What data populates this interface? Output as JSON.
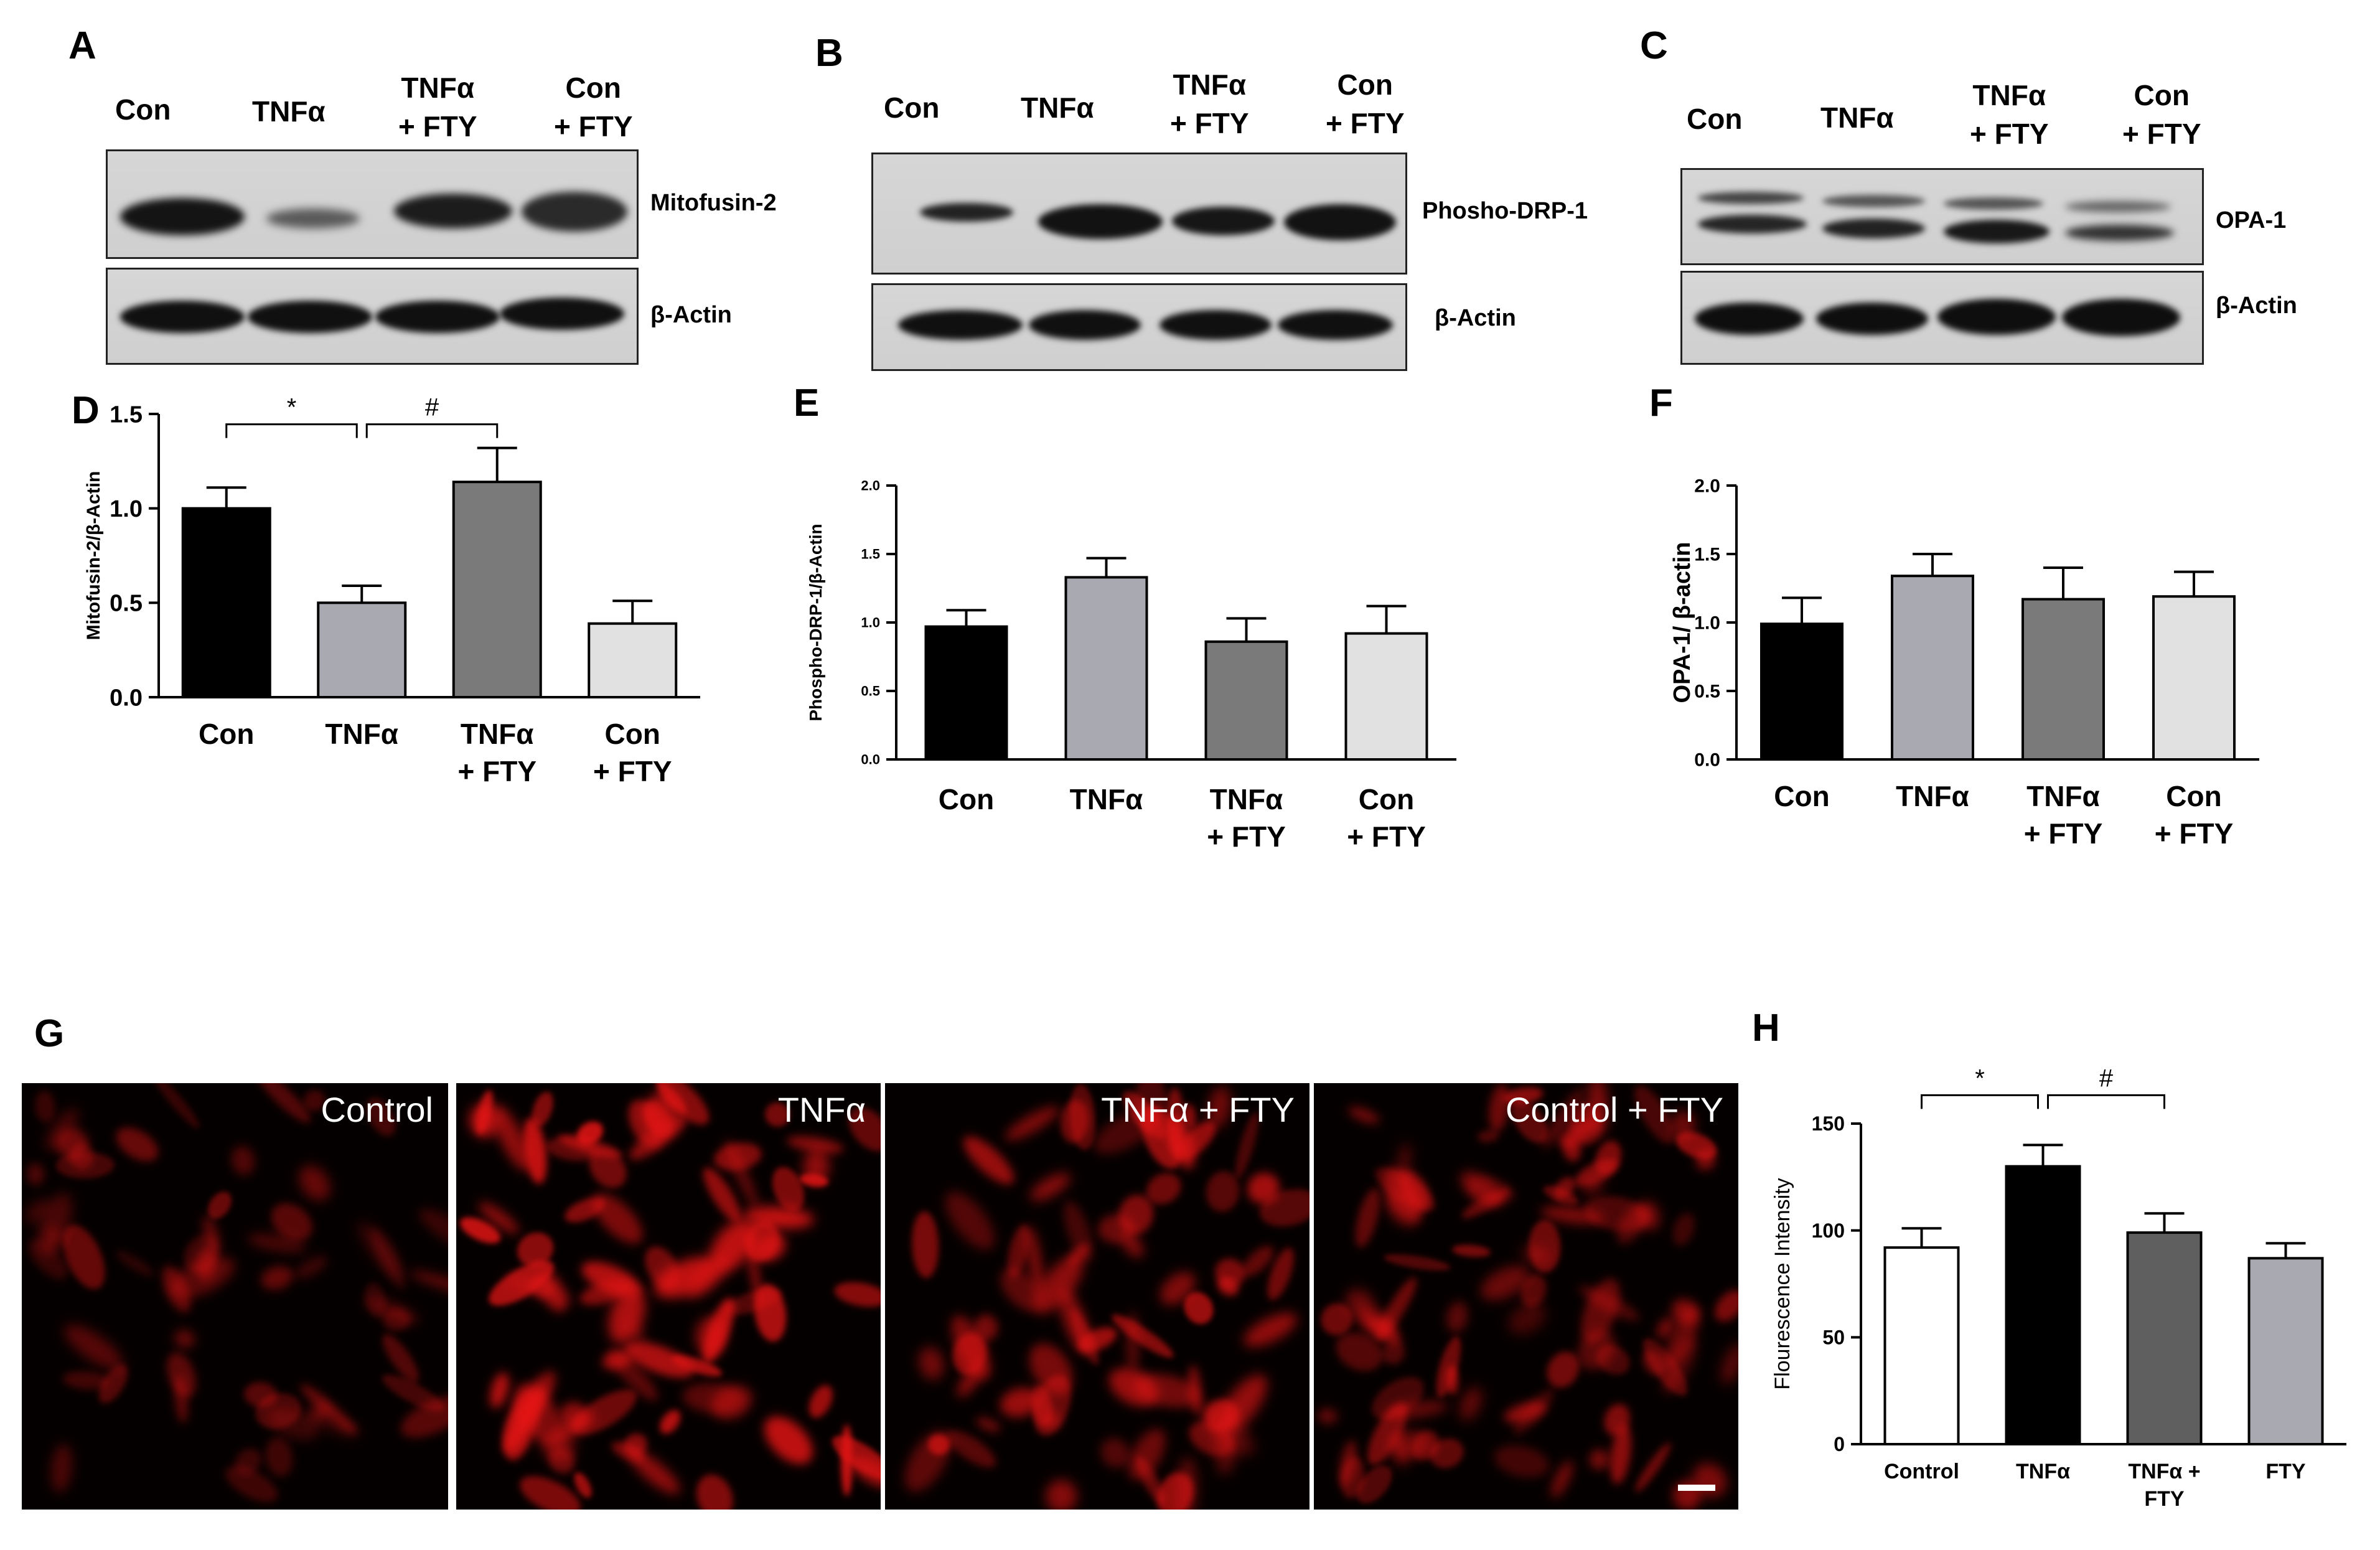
{
  "panels": {
    "A": {
      "letter": "A",
      "lanes": [
        "Con",
        "TNFα",
        "TNFα\n+ FTY",
        "Con\n+ FTY"
      ],
      "blots": [
        "Mitofusin-2",
        "β-Actin"
      ]
    },
    "B": {
      "letter": "B",
      "lanes": [
        "Con",
        "TNFα",
        "TNFα\n+ FTY",
        "Con\n+ FTY"
      ],
      "blots": [
        "Phosho-DRP-1",
        "β-Actin"
      ]
    },
    "C": {
      "letter": "C",
      "lanes": [
        "Con",
        "TNFα",
        "TNFα\n+ FTY",
        "Con\n+ FTY"
      ],
      "blots": [
        "OPA-1",
        "β-Actin"
      ]
    },
    "G": {
      "letter": "G",
      "images": [
        "Control",
        "TNFα",
        "TNFα + FTY",
        "Control + FTY"
      ]
    }
  },
  "colors": {
    "con": "#000000",
    "tnf": "#a9a9b1",
    "tnf_fty": "#7a7a7a",
    "con_fty": "#e1e1e1",
    "fluor": "#ff1a1a"
  },
  "chart_data": [
    {
      "id": "D",
      "letter": "D",
      "type": "bar",
      "categories": [
        "Con",
        "TNFα",
        "TNFα\n+ FTY",
        "Con\n+ FTY"
      ],
      "values": [
        1.0,
        0.5,
        1.14,
        0.39
      ],
      "errors": [
        0.11,
        0.09,
        0.18,
        0.12
      ],
      "ylabel": "Mitofusin-2/β-Actin",
      "ylim": [
        0,
        1.5
      ],
      "yticks": [
        "0.0",
        "0.5",
        "1.0",
        "1.5"
      ],
      "annotations": [
        "*",
        "#"
      ],
      "colors": [
        "#000000",
        "#a9a9b1",
        "#7a7a7a",
        "#e1e1e1"
      ]
    },
    {
      "id": "E",
      "letter": "E",
      "type": "bar",
      "categories": [
        "Con",
        "TNFα",
        "TNFα\n+ FTY",
        "Con\n+ FTY"
      ],
      "values": [
        0.97,
        1.33,
        0.86,
        0.92
      ],
      "errors": [
        0.12,
        0.14,
        0.17,
        0.2
      ],
      "ylabel": "Phospho-DRP-1/β-Actin",
      "ylim": [
        0,
        2.0
      ],
      "yticks": [
        "0.0",
        "0.5",
        "1.0",
        "1.5",
        "2.0"
      ],
      "annotations": [],
      "colors": [
        "#000000",
        "#a9a9b1",
        "#7a7a7a",
        "#e1e1e1"
      ]
    },
    {
      "id": "F",
      "letter": "F",
      "type": "bar",
      "categories": [
        "Con",
        "TNFα",
        "TNFα\n+ FTY",
        "Con\n+ FTY"
      ],
      "values": [
        0.99,
        1.34,
        1.17,
        1.19
      ],
      "errors": [
        0.19,
        0.16,
        0.23,
        0.18
      ],
      "ylabel": "OPA-1/ β-actin",
      "ylim": [
        0,
        2.0
      ],
      "yticks": [
        "0.0",
        "0.5",
        "1.0",
        "1.5",
        "2.0"
      ],
      "annotations": [],
      "colors": [
        "#000000",
        "#a9a9b1",
        "#7a7a7a",
        "#e1e1e1"
      ]
    },
    {
      "id": "H",
      "letter": "H",
      "type": "bar",
      "categories": [
        "Control",
        "TNFα",
        "TNFα +\nFTY",
        "FTY"
      ],
      "values": [
        92,
        130,
        99,
        87
      ],
      "errors": [
        9,
        10,
        9,
        7
      ],
      "ylabel": "Flourescence Intensity",
      "ylim": [
        0,
        150
      ],
      "yticks": [
        "0",
        "50",
        "100",
        "150"
      ],
      "annotations": [
        "*",
        "#"
      ],
      "colors": [
        "#ffffff",
        "#000000",
        "#5f5f5f",
        "#a9a9b1"
      ]
    }
  ]
}
